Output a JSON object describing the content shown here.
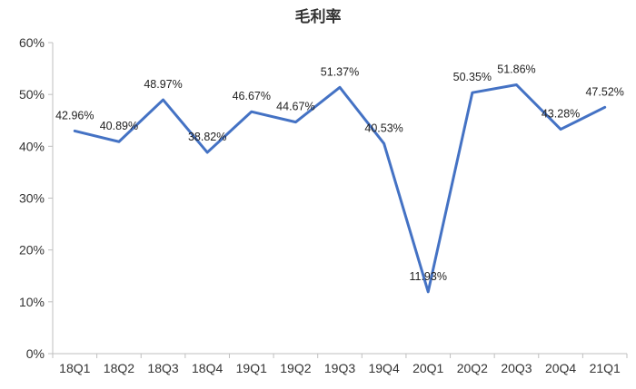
{
  "chart_data": {
    "type": "line",
    "title": "毛利率",
    "xlabel": "",
    "ylabel": "",
    "categories": [
      "18Q1",
      "18Q2",
      "18Q3",
      "18Q4",
      "19Q1",
      "19Q2",
      "19Q3",
      "19Q4",
      "20Q1",
      "20Q2",
      "20Q3",
      "20Q4",
      "21Q1"
    ],
    "series": [
      {
        "values": [
          42.96,
          40.89,
          48.97,
          38.82,
          46.67,
          44.67,
          51.37,
          40.53,
          11.93,
          50.35,
          51.86,
          43.28,
          47.52
        ],
        "data_labels": [
          "42.96%",
          "40.89%",
          "48.97%",
          "38.82%",
          "46.67%",
          "44.67%",
          "51.37%",
          "40.53%",
          "11.93%",
          "50.35%",
          "51.86%",
          "43.28%",
          "47.52%"
        ]
      }
    ],
    "ylim": [
      0,
      60
    ],
    "yticks": [
      0,
      10,
      20,
      30,
      40,
      50,
      60
    ],
    "ytick_labels": [
      "0%",
      "10%",
      "20%",
      "30%",
      "40%",
      "50%",
      "60%"
    ],
    "grid": false,
    "legend": "none",
    "colors": {
      "line": "#4472C4",
      "axis": "#bfbfbf"
    }
  }
}
